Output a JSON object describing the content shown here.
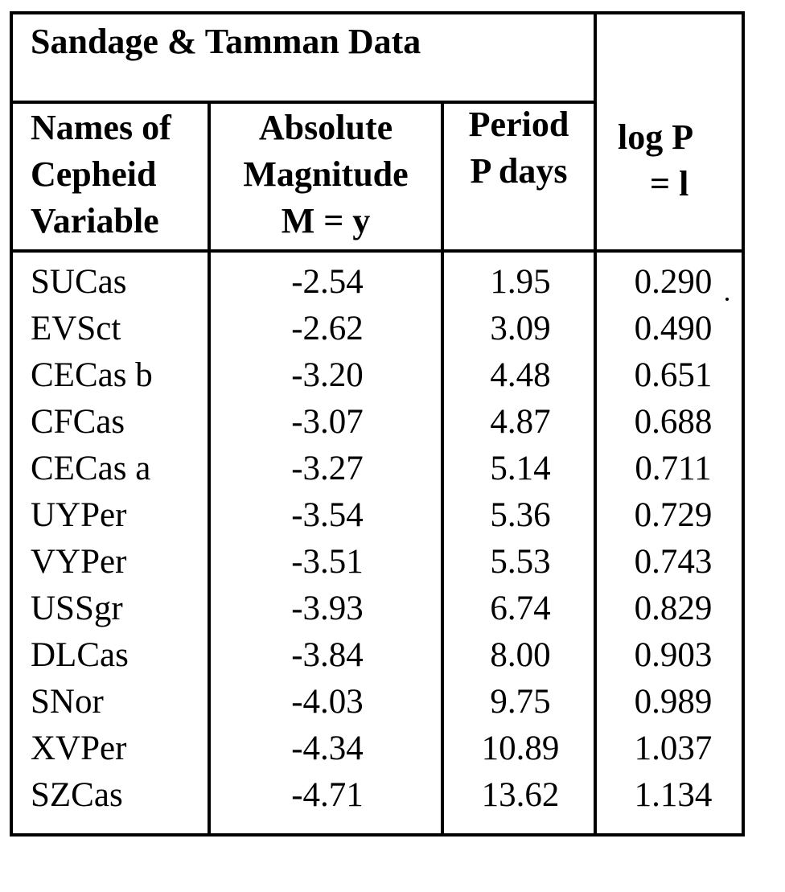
{
  "table": {
    "title": "Sandage & Tamman Data",
    "headers": {
      "names": [
        "Names of",
        "Cepheid",
        "Variable"
      ],
      "magnitude": [
        "Absolute",
        "Magnitude",
        "M = y"
      ],
      "period": [
        "Period",
        "P days"
      ],
      "log_line1": "log P",
      "log_line2": "= l"
    },
    "rows": [
      {
        "name": "SUCas",
        "magnitude": "-2.54",
        "period": "1.95",
        "log_p": "0.290"
      },
      {
        "name": "EVSct",
        "magnitude": "-2.62",
        "period": "3.09",
        "log_p": "0.490"
      },
      {
        "name": "CECas b",
        "magnitude": "-3.20",
        "period": "4.48",
        "log_p": "0.651"
      },
      {
        "name": "CFCas",
        "magnitude": "-3.07",
        "period": "4.87",
        "log_p": "0.688"
      },
      {
        "name": "CECas a",
        "magnitude": "-3.27",
        "period": "5.14",
        "log_p": "0.711"
      },
      {
        "name": "UYPer",
        "magnitude": "-3.54",
        "period": "5.36",
        "log_p": "0.729"
      },
      {
        "name": "VYPer",
        "magnitude": "-3.51",
        "period": "5.53",
        "log_p": "0.743"
      },
      {
        "name": "USSgr",
        "magnitude": "-3.93",
        "period": "6.74",
        "log_p": "0.829"
      },
      {
        "name": "DLCas",
        "magnitude": "-3.84",
        "period": "8.00",
        "log_p": "0.903"
      },
      {
        "name": "SNor",
        "magnitude": "-4.03",
        "period": "9.75",
        "log_p": "0.989"
      },
      {
        "name": "XVPer",
        "magnitude": "-4.34",
        "period": "10.89",
        "log_p": "1.037"
      },
      {
        "name": "SZCas",
        "magnitude": "-4.71",
        "period": "13.62",
        "log_p": "1.134"
      }
    ]
  }
}
